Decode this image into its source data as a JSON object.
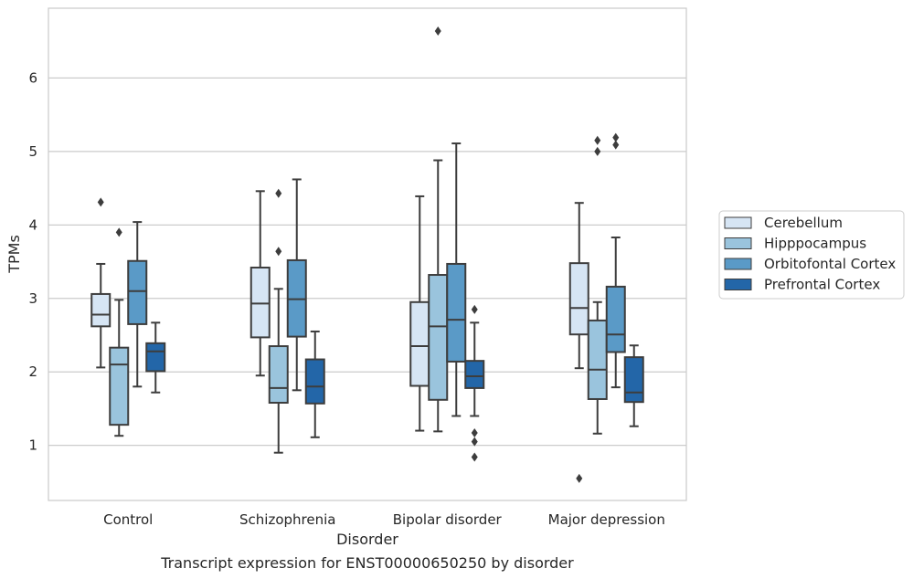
{
  "caption": "Transcript expression for ENST00000650250 by disorder",
  "chart_data": {
    "type": "box",
    "title": "",
    "xlabel": "Disorder",
    "ylabel": "TPMs",
    "ylim": [
      0.25,
      6.95
    ],
    "yticks": [
      1,
      2,
      3,
      4,
      5,
      6
    ],
    "grid": "horizontal",
    "legend_position": "right",
    "categories": [
      "Control",
      "Schizophrenia",
      "Bipolar disorder",
      "Major depression"
    ],
    "series": [
      {
        "name": "Cerebellum",
        "color": "#d6e5f4",
        "boxes": [
          {
            "whisker_low": 2.06,
            "q1": 2.62,
            "median": 2.78,
            "q3": 3.06,
            "whisker_high": 3.47,
            "outliers": [
              4.31
            ]
          },
          {
            "whisker_low": 1.95,
            "q1": 2.47,
            "median": 2.93,
            "q3": 3.42,
            "whisker_high": 4.46,
            "outliers": []
          },
          {
            "whisker_low": 1.2,
            "q1": 1.81,
            "median": 2.35,
            "q3": 2.95,
            "whisker_high": 4.39,
            "outliers": []
          },
          {
            "whisker_low": 2.05,
            "q1": 2.51,
            "median": 2.87,
            "q3": 3.48,
            "whisker_high": 4.3,
            "outliers": [
              0.55
            ]
          }
        ]
      },
      {
        "name": "Hipppocampus",
        "color": "#9ac4dd",
        "boxes": [
          {
            "whisker_low": 1.13,
            "q1": 1.28,
            "median": 2.1,
            "q3": 2.33,
            "whisker_high": 2.98,
            "outliers": [
              3.9
            ]
          },
          {
            "whisker_low": 0.9,
            "q1": 1.58,
            "median": 1.78,
            "q3": 2.35,
            "whisker_high": 3.13,
            "outliers": [
              3.64,
              4.43
            ]
          },
          {
            "whisker_low": 1.19,
            "q1": 1.62,
            "median": 2.62,
            "q3": 3.32,
            "whisker_high": 4.88,
            "outliers": [
              6.64
            ]
          },
          {
            "whisker_low": 1.16,
            "q1": 1.63,
            "median": 2.03,
            "q3": 2.7,
            "whisker_high": 2.95,
            "outliers": [
              5.0,
              5.15
            ]
          }
        ]
      },
      {
        "name": "Orbitofontal Cortex",
        "color": "#5a9ac7",
        "boxes": [
          {
            "whisker_low": 1.8,
            "q1": 2.65,
            "median": 3.1,
            "q3": 3.51,
            "whisker_high": 4.04,
            "outliers": []
          },
          {
            "whisker_low": 1.75,
            "q1": 2.48,
            "median": 2.99,
            "q3": 3.52,
            "whisker_high": 4.62,
            "outliers": []
          },
          {
            "whisker_low": 1.4,
            "q1": 2.14,
            "median": 2.71,
            "q3": 3.47,
            "whisker_high": 5.11,
            "outliers": []
          },
          {
            "whisker_low": 1.79,
            "q1": 2.27,
            "median": 2.51,
            "q3": 3.16,
            "whisker_high": 3.83,
            "outliers": [
              5.09,
              5.19
            ]
          }
        ]
      },
      {
        "name": "Prefrontal Cortex",
        "color": "#2366a8",
        "boxes": [
          {
            "whisker_low": 1.72,
            "q1": 2.01,
            "median": 2.28,
            "q3": 2.39,
            "whisker_high": 2.67,
            "outliers": []
          },
          {
            "whisker_low": 1.11,
            "q1": 1.57,
            "median": 1.8,
            "q3": 2.17,
            "whisker_high": 2.55,
            "outliers": []
          },
          {
            "whisker_low": 1.4,
            "q1": 1.78,
            "median": 1.94,
            "q3": 2.15,
            "whisker_high": 2.67,
            "outliers": [
              2.85,
              1.17,
              1.05,
              0.84
            ]
          },
          {
            "whisker_low": 1.26,
            "q1": 1.59,
            "median": 1.72,
            "q3": 2.2,
            "whisker_high": 2.36,
            "outliers": []
          }
        ]
      }
    ]
  }
}
